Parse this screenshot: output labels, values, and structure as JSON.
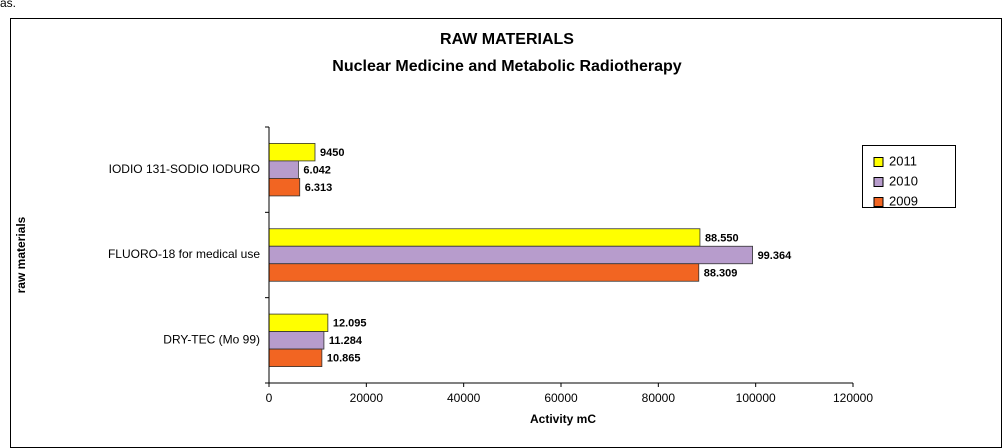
{
  "fragment": "as.",
  "chart_data": {
    "type": "hbar",
    "title": "RAW MATERIALS",
    "subtitle": "Nuclear Medicine and Metabolic Radiotherapy",
    "x_label": "Activity mC",
    "y_label": "raw materials",
    "categories": [
      "IODIO 131-SODIO IODURO",
      "FLUORO-18 for medical use",
      "DRY-TEC (Mo 99)"
    ],
    "series": [
      {
        "name": "2011",
        "color": "#ffff00",
        "values": [
          9450,
          88550,
          12095
        ],
        "value_labels": [
          "9450",
          "88.550",
          "12.095"
        ]
      },
      {
        "name": "2010",
        "color": "#b79ccc",
        "values": [
          6042,
          99364,
          11284
        ],
        "value_labels": [
          "6.042",
          "99.364",
          "11.284"
        ]
      },
      {
        "name": "2009",
        "color": "#f26522",
        "values": [
          6313,
          88309,
          10865
        ],
        "value_labels": [
          "6.313",
          "88.309",
          "10.865"
        ]
      }
    ],
    "xlim": [
      0,
      120000
    ],
    "xticks": [
      0,
      20000,
      40000,
      60000,
      80000,
      100000,
      120000
    ],
    "grid": false,
    "legend": "right"
  }
}
